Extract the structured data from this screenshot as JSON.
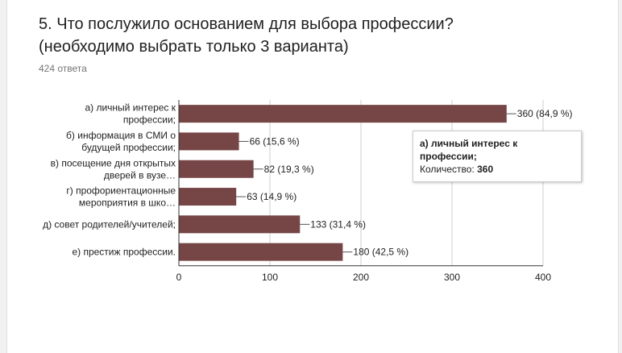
{
  "question": {
    "title": "5. Что послужило основанием для выбора профессии?\n(необходимо выбрать только 3 варианта)",
    "responses": "424 ответа"
  },
  "tooltip": {
    "name": "а) личный интерес к профессии;",
    "count_label": "Количество:",
    "count_value": "360"
  },
  "colors": {
    "bar": "#764545",
    "axis": "#333333",
    "grid": "#cccccc",
    "text": "#222222"
  },
  "chart_data": {
    "type": "bar",
    "orientation": "horizontal",
    "categories": [
      [
        "а) личный интерес к",
        "профессии;"
      ],
      [
        "б) информация в СМИ о",
        "будущей профессии;"
      ],
      [
        "в) посещение дня открытых",
        "дверей в вузе…"
      ],
      [
        "г) профориентационные",
        "мероприятия в шко…"
      ],
      [
        "д) совет родителей/учителей;"
      ],
      [
        "е) престиж профессии."
      ]
    ],
    "values": [
      360,
      66,
      82,
      63,
      133,
      180
    ],
    "data_labels": [
      "360 (84,9 %)",
      "66 (15,6 %)",
      "82 (19,3 %)",
      "63 (14,9 %)",
      "133 (31,4 %)",
      "180 (42,5 %)"
    ],
    "xlim": [
      0,
      400
    ],
    "xticks": [
      0,
      100,
      200,
      300,
      400
    ],
    "grid": true
  }
}
